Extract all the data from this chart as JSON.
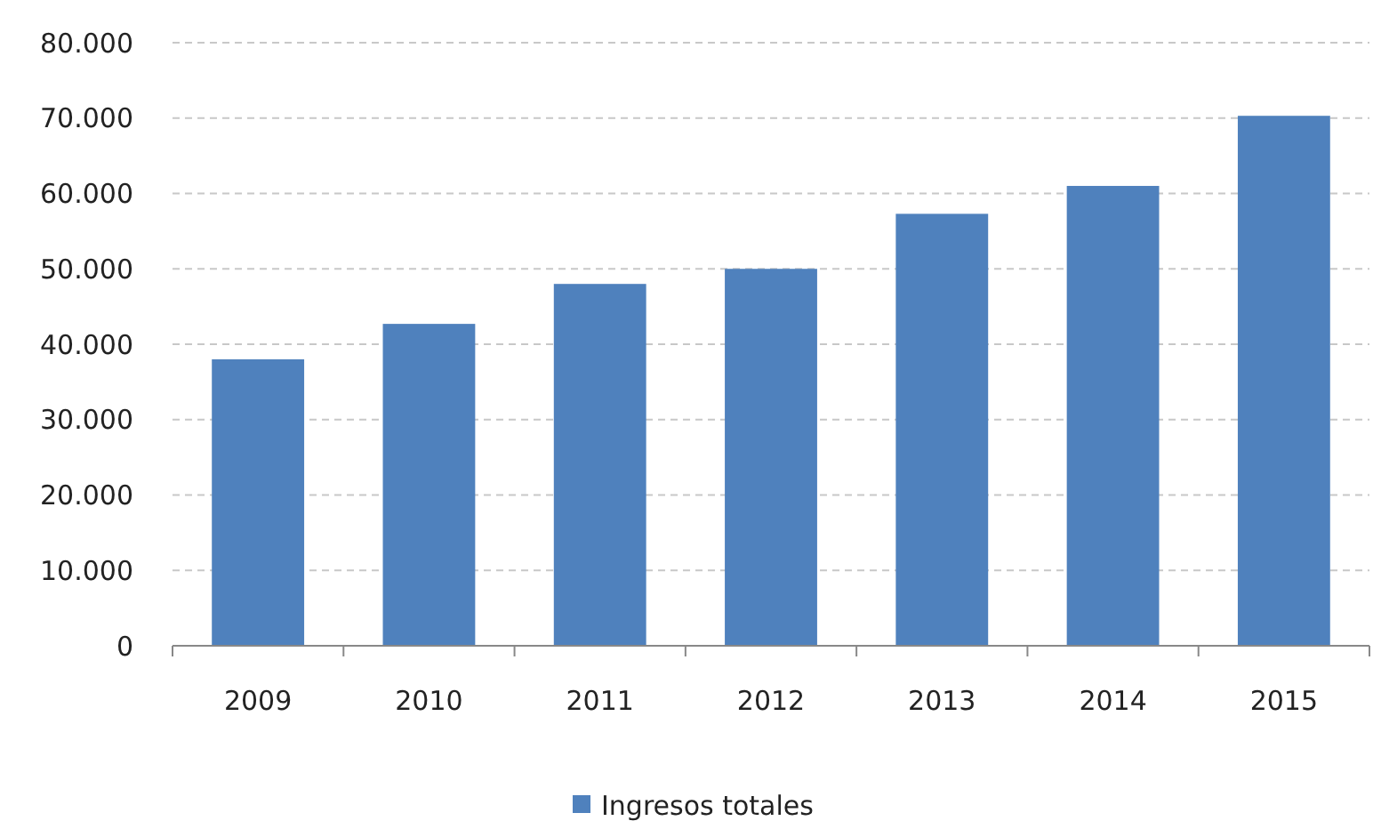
{
  "chart_data": {
    "type": "bar",
    "categories": [
      "2009",
      "2010",
      "2011",
      "2012",
      "2013",
      "2014",
      "2015"
    ],
    "series": [
      {
        "name": "Ingresos totales",
        "color": "#4f81bd",
        "values": [
          38000,
          42700,
          48000,
          50000,
          57300,
          61000,
          70300
        ]
      }
    ],
    "ylim": [
      0,
      80000
    ],
    "yticks": [
      {
        "value": 0,
        "label": "0"
      },
      {
        "value": 10000,
        "label": "10.000"
      },
      {
        "value": 20000,
        "label": "20.000"
      },
      {
        "value": 30000,
        "label": "30.000"
      },
      {
        "value": 40000,
        "label": "40.000"
      },
      {
        "value": 50000,
        "label": "50.000"
      },
      {
        "value": 60000,
        "label": "60.000"
      },
      {
        "value": 70000,
        "label": "70.000"
      },
      {
        "value": 80000,
        "label": "80.000"
      }
    ],
    "grid": "y",
    "legend": "bottom"
  }
}
